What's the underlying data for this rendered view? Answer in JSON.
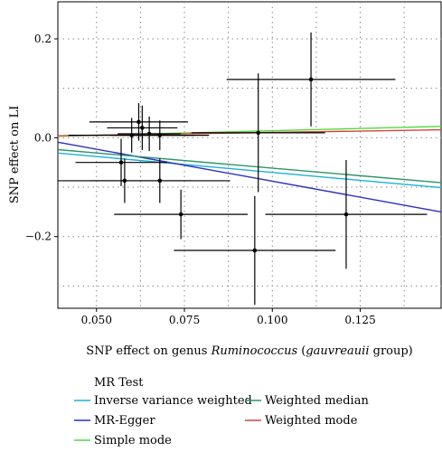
{
  "chart_data": {
    "type": "scatter",
    "xlabel_prefix": "SNP effect on genus ",
    "xlabel_italic": "Ruminococcus",
    "xlabel_mid": " (",
    "xlabel_italic2": "gauvreauii",
    "xlabel_suffix": " group)",
    "ylabel": "SNP effect on LI",
    "xlim": [
      0.039,
      0.148
    ],
    "ylim": [
      -0.345,
      0.275
    ],
    "xticks": [
      0.05,
      0.075,
      0.1,
      0.125
    ],
    "xtick_labels": [
      "0.050",
      "0.075",
      "0.100",
      "0.125"
    ],
    "yticks": [
      -0.2,
      0.0,
      0.2
    ],
    "ytick_labels": [
      "−0.2",
      "0.0",
      "0.2"
    ],
    "grid": true,
    "points": [
      {
        "x": 0.062,
        "y": 0.032,
        "xerr": 0.014,
        "yerr": 0.038
      },
      {
        "x": 0.063,
        "y": 0.02,
        "xerr": 0.01,
        "yerr": 0.045
      },
      {
        "x": 0.06,
        "y": 0.005,
        "xerr": 0.018,
        "yerr": 0.035
      },
      {
        "x": 0.065,
        "y": 0.008,
        "xerr": 0.009,
        "yerr": 0.035
      },
      {
        "x": 0.068,
        "y": 0.005,
        "xerr": 0.014,
        "yerr": 0.03
      },
      {
        "x": 0.057,
        "y": -0.05,
        "xerr": 0.013,
        "yerr": 0.048
      },
      {
        "x": 0.058,
        "y": -0.087,
        "xerr": 0.019,
        "yerr": 0.045
      },
      {
        "x": 0.068,
        "y": -0.087,
        "xerr": 0.02,
        "yerr": 0.045
      },
      {
        "x": 0.074,
        "y": -0.155,
        "xerr": 0.019,
        "yerr": 0.05
      },
      {
        "x": 0.095,
        "y": -0.228,
        "xerr": 0.023,
        "yerr": 0.11
      },
      {
        "x": 0.096,
        "y": 0.01,
        "xerr": 0.019,
        "yerr": 0.12
      },
      {
        "x": 0.111,
        "y": 0.118,
        "xerr": 0.024,
        "yerr": 0.095
      },
      {
        "x": 0.121,
        "y": -0.155,
        "xerr": 0.023,
        "yerr": 0.11
      }
    ],
    "series": [
      {
        "name": "Inverse variance weighted",
        "color": "#1ab2d6",
        "x": [
          0.039,
          0.148
        ],
        "y": [
          -0.031,
          -0.101
        ]
      },
      {
        "name": "MR-Egger",
        "color": "#2b2fc2",
        "x": [
          0.039,
          0.148
        ],
        "y": [
          -0.009,
          -0.15
        ]
      },
      {
        "name": "Simple mode",
        "color": "#4ddb3b",
        "x": [
          0.039,
          0.148
        ],
        "y": [
          0.003,
          0.023
        ]
      },
      {
        "name": "Weighted median",
        "color": "#2e9468",
        "x": [
          0.039,
          0.148
        ],
        "y": [
          -0.024,
          -0.091
        ]
      },
      {
        "name": "Weighted mode",
        "color": "#d1453b",
        "x": [
          0.039,
          0.148
        ],
        "y": [
          0.004,
          0.016
        ]
      }
    ],
    "legend": {
      "title": "MR Test",
      "placement": "bottom"
    }
  }
}
